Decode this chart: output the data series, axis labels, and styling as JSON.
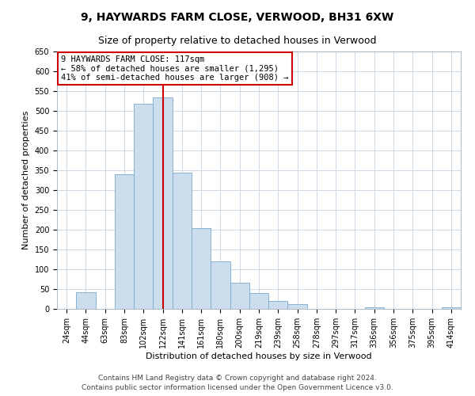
{
  "title": "9, HAYWARDS FARM CLOSE, VERWOOD, BH31 6XW",
  "subtitle": "Size of property relative to detached houses in Verwood",
  "xlabel": "Distribution of detached houses by size in Verwood",
  "ylabel": "Number of detached properties",
  "bin_labels": [
    "24sqm",
    "44sqm",
    "63sqm",
    "83sqm",
    "102sqm",
    "122sqm",
    "141sqm",
    "161sqm",
    "180sqm",
    "200sqm",
    "219sqm",
    "239sqm",
    "258sqm",
    "278sqm",
    "297sqm",
    "317sqm",
    "336sqm",
    "356sqm",
    "375sqm",
    "395sqm",
    "414sqm"
  ],
  "bin_values": [
    0,
    42,
    0,
    340,
    518,
    535,
    345,
    205,
    120,
    66,
    40,
    20,
    12,
    0,
    0,
    0,
    4,
    0,
    0,
    0,
    4
  ],
  "bar_color": "#ccdded",
  "bar_edge_color": "#7aa8cc",
  "vline_x": 5,
  "vline_color": "#cc0000",
  "ylim": [
    0,
    650
  ],
  "yticks": [
    0,
    50,
    100,
    150,
    200,
    250,
    300,
    350,
    400,
    450,
    500,
    550,
    600,
    650
  ],
  "annotation_box_text": "9 HAYWARDS FARM CLOSE: 117sqm\n← 58% of detached houses are smaller (1,295)\n41% of semi-detached houses are larger (908) →",
  "annotation_box_color": "#ffffff",
  "annotation_box_edgecolor": "#cc0000",
  "footnote1": "Contains HM Land Registry data © Crown copyright and database right 2024.",
  "footnote2": "Contains public sector information licensed under the Open Government Licence v3.0.",
  "background_color": "#ffffff",
  "grid_color": "#ccd8e5",
  "title_fontsize": 10,
  "subtitle_fontsize": 9,
  "tick_fontsize": 7,
  "label_fontsize": 8,
  "footnote_fontsize": 6.5
}
